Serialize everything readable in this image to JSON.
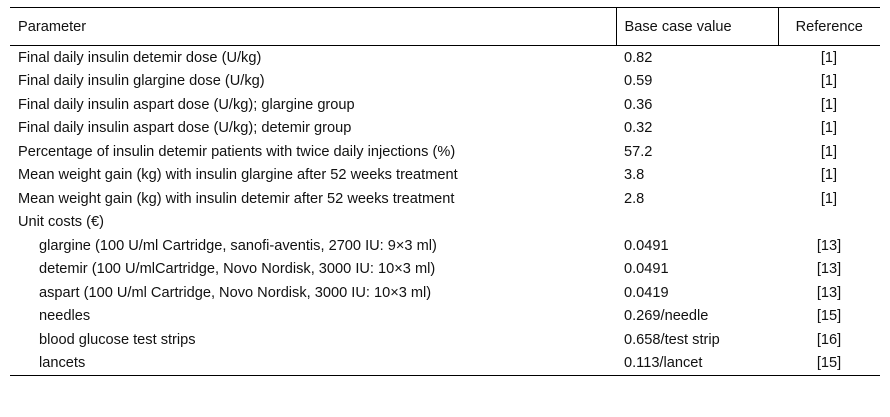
{
  "table": {
    "headers": {
      "parameter": "Parameter",
      "base_case": "Base case value",
      "reference": "Reference"
    },
    "rows": [
      {
        "parameter": "Final daily insulin detemir dose (U/kg)",
        "value": "0.82",
        "reference": "[1]"
      },
      {
        "parameter": "Final daily insulin glargine dose (U/kg)",
        "value": "0.59",
        "reference": "[1]"
      },
      {
        "parameter": "Final daily insulin aspart dose (U/kg); glargine group",
        "value": "0.36",
        "reference": "[1]"
      },
      {
        "parameter": "Final daily insulin aspart dose (U/kg); detemir group",
        "value": "0.32",
        "reference": "[1]"
      },
      {
        "parameter": "Percentage of insulin detemir patients with twice daily injections (%)",
        "value": "57.2",
        "reference": "[1]"
      },
      {
        "parameter": "Mean weight gain (kg) with insulin glargine after 52 weeks treatment",
        "value": "3.8",
        "reference": "[1]"
      },
      {
        "parameter": "Mean weight gain (kg) with insulin detemir after 52 weeks treatment",
        "value": "2.8",
        "reference": "[1]"
      },
      {
        "parameter": "Unit costs (€)",
        "value": "",
        "reference": ""
      },
      {
        "parameter": "glargine (100 U/ml Cartridge, sanofi-aventis, 2700 IU: 9×3 ml)",
        "value": "0.0491",
        "reference": "[13]"
      },
      {
        "parameter": "detemir (100 U/mlCartridge, Novo Nordisk, 3000 IU: 10×3 ml)",
        "value": "0.0491",
        "reference": "[13]"
      },
      {
        "parameter": "aspart (100 U/ml Cartridge, Novo Nordisk, 3000 IU: 10×3 ml)",
        "value": "0.0419",
        "reference": "[13]"
      },
      {
        "parameter": "needles",
        "value": "0.269/needle",
        "reference": "[15]"
      },
      {
        "parameter": "blood glucose test strips",
        "value": "0.658/test strip",
        "reference": "[16]"
      },
      {
        "parameter": "lancets",
        "value": "0.113/lancet",
        "reference": "[15]"
      }
    ]
  }
}
